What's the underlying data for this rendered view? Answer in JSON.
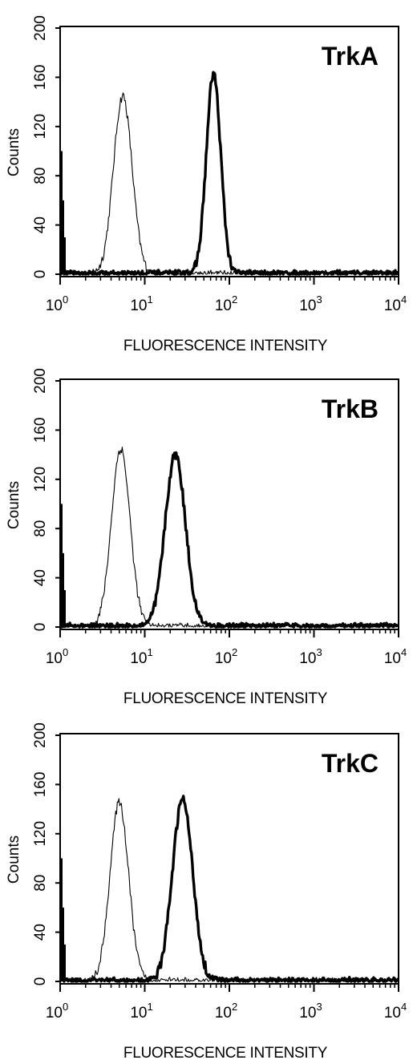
{
  "chart_data": [
    {
      "type": "line",
      "title": "TrkA",
      "xlabel": "FLUORESCENCE INTENSITY",
      "ylabel": "Counts",
      "xscale": "log",
      "xlim": [
        1,
        10000
      ],
      "ylim": [
        0,
        200
      ],
      "yticks": [
        "0",
        "40",
        "80",
        "120",
        "160",
        "200"
      ],
      "xticks": [
        {
          "base": "10",
          "exp": "0"
        },
        {
          "base": "10",
          "exp": "1"
        },
        {
          "base": "10",
          "exp": "2"
        },
        {
          "base": "10",
          "exp": "3"
        },
        {
          "base": "10",
          "exp": "4"
        }
      ],
      "grid": false,
      "legend": "none",
      "series": [
        {
          "style": "thin",
          "peak_x": 5.5,
          "peak_y": 145,
          "width_log": 0.11
        },
        {
          "style": "thick",
          "peak_x": 65,
          "peak_y": 163,
          "width_log": 0.085
        }
      ]
    },
    {
      "type": "line",
      "title": "TrkB",
      "xlabel": "FLUORESCENCE INTENSITY",
      "ylabel": "Counts",
      "xscale": "log",
      "xlim": [
        1,
        10000
      ],
      "ylim": [
        0,
        200
      ],
      "yticks": [
        "0",
        "40",
        "80",
        "120",
        "160",
        "200"
      ],
      "xticks": [
        {
          "base": "10",
          "exp": "0"
        },
        {
          "base": "10",
          "exp": "1"
        },
        {
          "base": "10",
          "exp": "2"
        },
        {
          "base": "10",
          "exp": "3"
        },
        {
          "base": "10",
          "exp": "4"
        }
      ],
      "grid": false,
      "legend": "none",
      "series": [
        {
          "style": "thin",
          "peak_x": 5.2,
          "peak_y": 145,
          "width_log": 0.11
        },
        {
          "style": "thick",
          "peak_x": 23,
          "peak_y": 140,
          "width_log": 0.12
        }
      ]
    },
    {
      "type": "line",
      "title": "TrkC",
      "xlabel": "FLUORESCENCE INTENSITY",
      "ylabel": "Counts",
      "xscale": "log",
      "xlim": [
        1,
        10000
      ],
      "ylim": [
        0,
        200
      ],
      "yticks": [
        "0",
        "40",
        "80",
        "120",
        "160",
        "200"
      ],
      "xticks": [
        {
          "base": "10",
          "exp": "0"
        },
        {
          "base": "10",
          "exp": "1"
        },
        {
          "base": "10",
          "exp": "2"
        },
        {
          "base": "10",
          "exp": "3"
        },
        {
          "base": "10",
          "exp": "4"
        }
      ],
      "grid": false,
      "legend": "none",
      "series": [
        {
          "style": "thin",
          "peak_x": 5.0,
          "peak_y": 145,
          "width_log": 0.11
        },
        {
          "style": "thick",
          "peak_x": 28,
          "peak_y": 148,
          "width_log": 0.12
        }
      ]
    }
  ]
}
